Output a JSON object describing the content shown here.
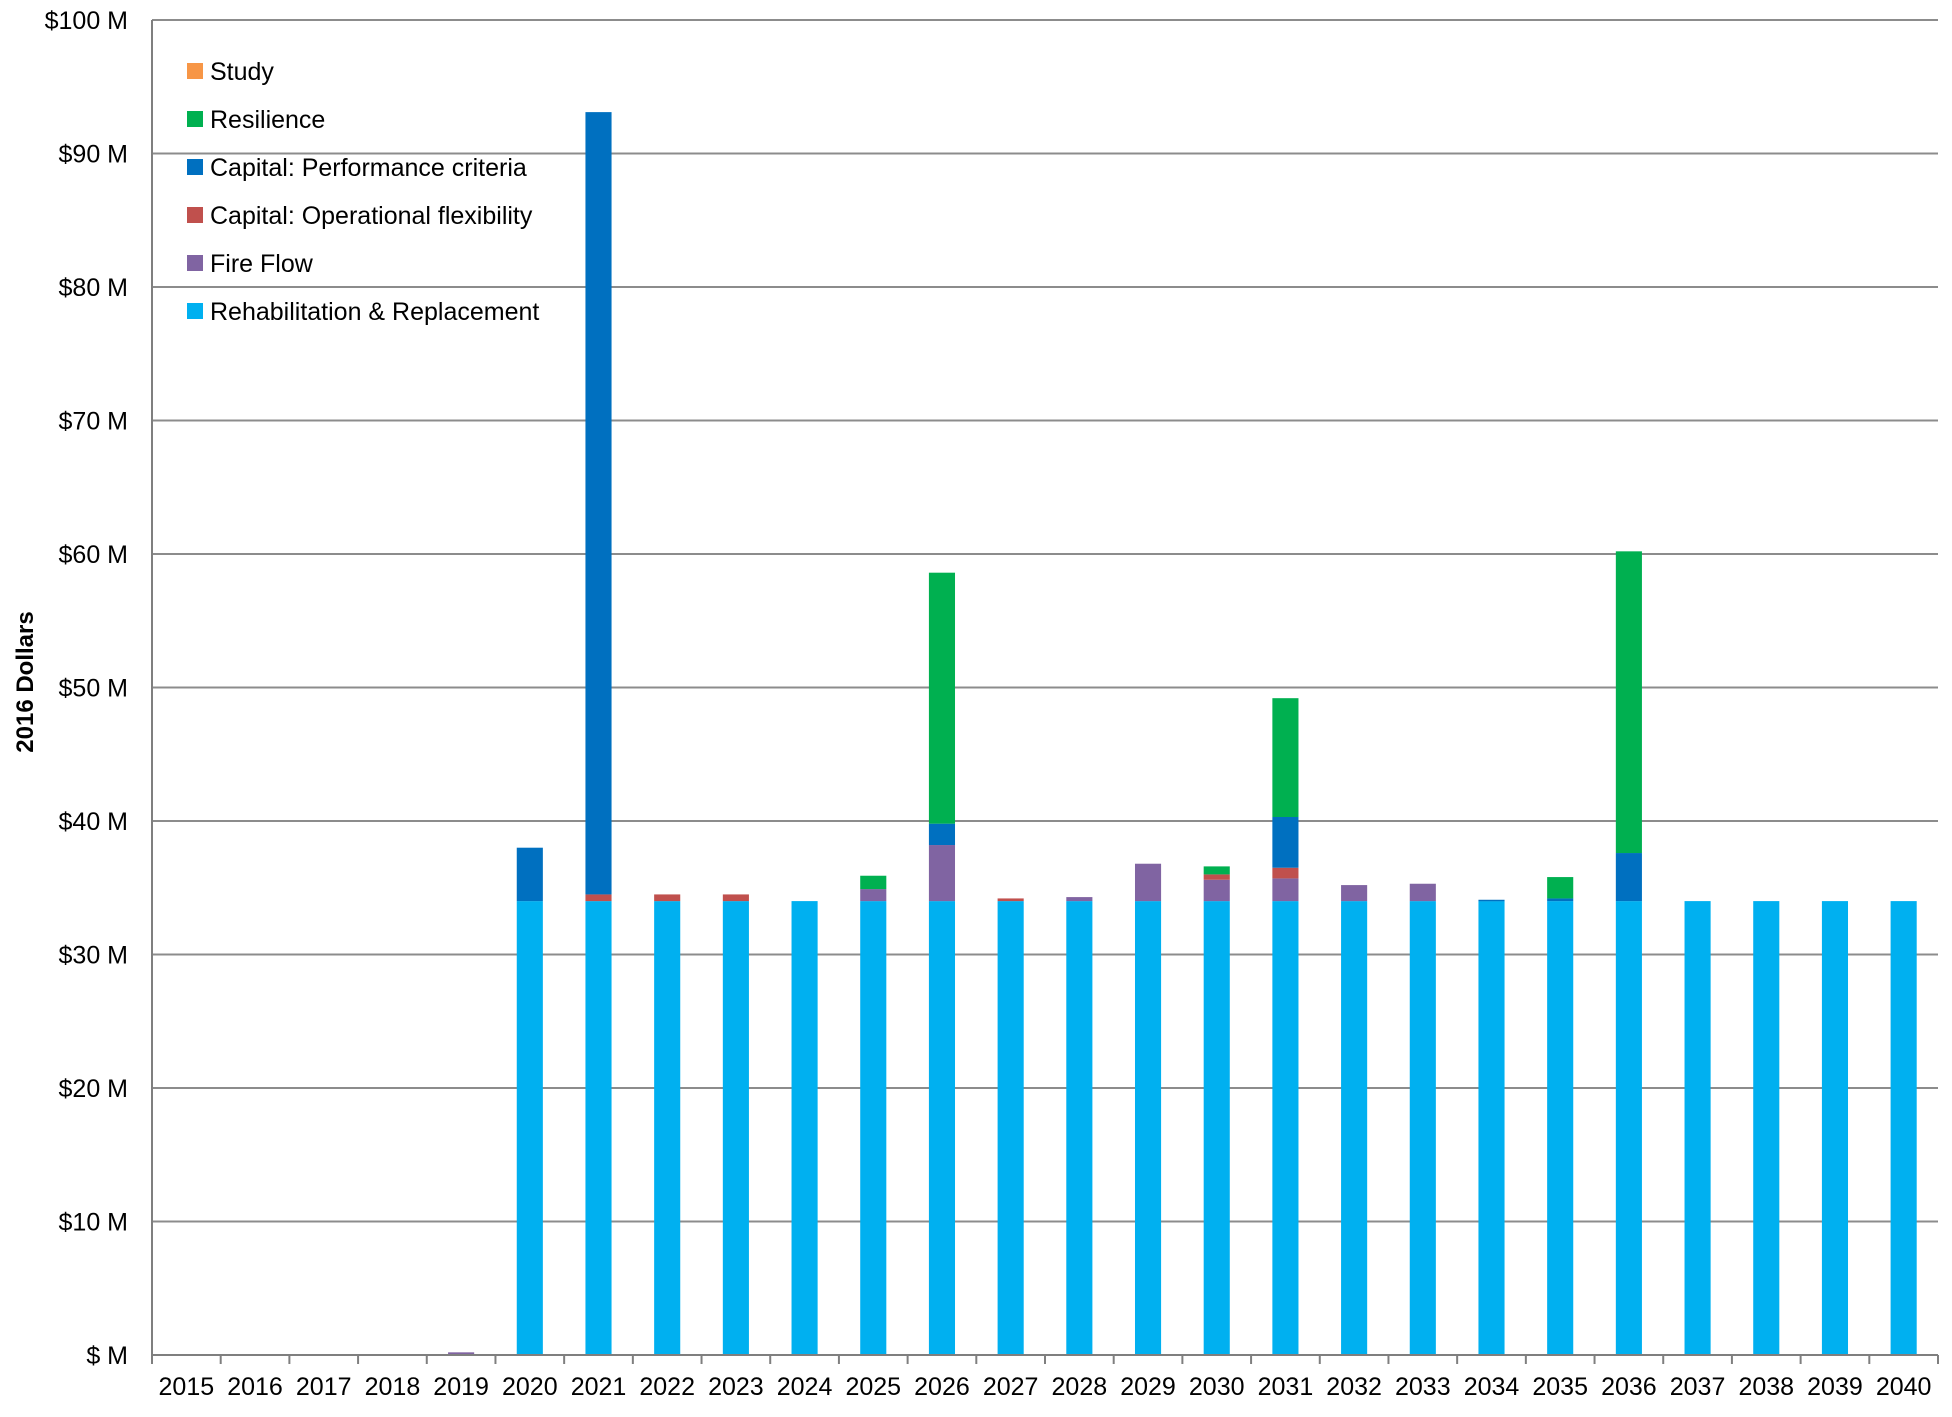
{
  "chart_data": {
    "type": "bar",
    "stacked": true,
    "title": "",
    "xlabel": "",
    "ylabel": "2016 Dollars",
    "ylim": [
      0,
      100
    ],
    "y_unit": "M dollars",
    "y_ticks": [
      "$ M",
      "$10 M",
      "$20 M",
      "$30 M",
      "$40 M",
      "$50 M",
      "$60 M",
      "$70 M",
      "$80 M",
      "$90 M",
      "$100 M"
    ],
    "grid": true,
    "legend_position": "top-left",
    "categories": [
      "2015",
      "2016",
      "2017",
      "2018",
      "2019",
      "2020",
      "2021",
      "2022",
      "2023",
      "2024",
      "2025",
      "2026",
      "2027",
      "2028",
      "2029",
      "2030",
      "2031",
      "2032",
      "2033",
      "2034",
      "2035",
      "2036",
      "2037",
      "2038",
      "2039",
      "2040"
    ],
    "series": [
      {
        "name": "Rehabilitation & Replacement",
        "color": "#00b0f0",
        "values": [
          0,
          0,
          0,
          0,
          0,
          34,
          34,
          34,
          34,
          34,
          34,
          34,
          34,
          34,
          34,
          34,
          34,
          34,
          34,
          34,
          34,
          34,
          34,
          34,
          34,
          34
        ]
      },
      {
        "name": "Fire Flow",
        "color": "#8064a2",
        "values": [
          0,
          0,
          0,
          0,
          0.2,
          0,
          0,
          0,
          0,
          0,
          0.9,
          4.2,
          0,
          0.3,
          2.8,
          1.6,
          1.7,
          1.2,
          1.3,
          0,
          0,
          0,
          0,
          0,
          0,
          0
        ]
      },
      {
        "name": "Capital: Operational flexibility",
        "color": "#c0504d",
        "values": [
          0,
          0,
          0,
          0,
          0,
          0,
          0.5,
          0.5,
          0.5,
          0,
          0,
          0,
          0.2,
          0,
          0,
          0.4,
          0.8,
          0,
          0,
          0,
          0,
          0,
          0,
          0,
          0,
          0
        ]
      },
      {
        "name": "Capital: Performance criteria",
        "color": "#0070c0",
        "values": [
          0,
          0,
          0,
          0,
          0,
          4,
          58.6,
          0,
          0,
          0,
          0,
          1.6,
          0,
          0,
          0,
          0,
          3.8,
          0,
          0,
          0.1,
          0.2,
          3.6,
          0,
          0,
          0,
          0
        ]
      },
      {
        "name": "Resilience",
        "color": "#00b050",
        "values": [
          0,
          0,
          0,
          0,
          0,
          0,
          0,
          0,
          0,
          0,
          1,
          18.8,
          0,
          0,
          0,
          0.6,
          8.9,
          0,
          0,
          0,
          1.6,
          22.6,
          0,
          0,
          0,
          0
        ]
      },
      {
        "name": "Study",
        "color": "#f79646",
        "values": [
          0,
          0,
          0,
          0,
          0,
          0,
          0,
          0,
          0,
          0,
          0,
          0,
          0,
          0,
          0,
          0,
          0,
          0,
          0,
          0,
          0,
          0,
          0,
          0,
          0,
          0
        ]
      }
    ],
    "legend_order": [
      "Study",
      "Resilience",
      "Capital: Performance criteria",
      "Capital: Operational flexibility",
      "Fire Flow",
      "Rehabilitation & Replacement"
    ]
  }
}
